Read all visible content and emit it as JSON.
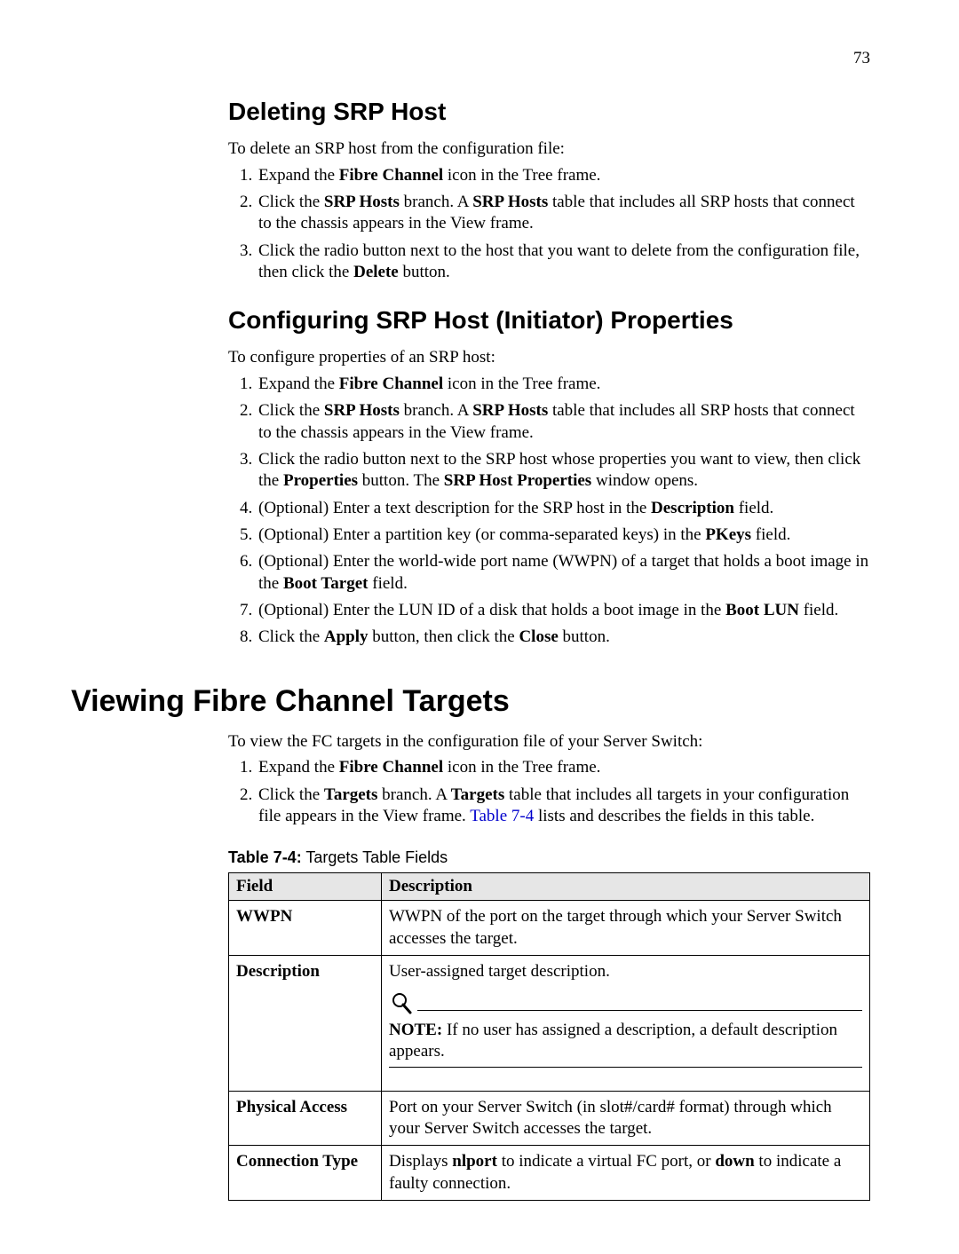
{
  "pageNumber": "73",
  "sec1": {
    "title": "Deleting SRP Host",
    "intro": "To delete an SRP host from the configuration file:",
    "steps_html": [
      "Expand the <b>Fibre Channel</b> icon in the Tree frame.",
      "Click the <b>SRP Hosts</b> branch. A <b>SRP Hosts</b> table that includes all SRP hosts that connect to the chassis appears in the View frame.",
      "Click the radio button next to the host that you want to delete from the configuration file, then click the <b>Delete</b> button."
    ]
  },
  "sec2": {
    "title": "Configuring SRP Host (Initiator) Properties",
    "intro": "To configure properties of an SRP host:",
    "steps_html": [
      "Expand the <b>Fibre Channel</b> icon in the Tree frame.",
      "Click the <b>SRP Hosts</b> branch. A <b>SRP Hosts</b> table that includes all SRP hosts that connect to the chassis appears in the View frame.",
      "Click the radio button next to the SRP host whose properties you want to view, then click the <b>Properties</b> button. The <b>SRP Host Properties</b> window opens.",
      "(Optional) Enter a text description for the SRP host in the <b>Description</b> field.",
      "(Optional) Enter a partition key (or comma-separated keys) in the <b>PKeys</b> field.",
      "(Optional) Enter the world-wide port name (WWPN) of a target that holds a boot image in the <b>Boot Target</b> field.",
      "(Optional) Enter the LUN ID of a disk that holds a boot image in the <b>Boot LUN</b> field.",
      "Click the <b>Apply</b> button, then click the <b>Close</b> button."
    ]
  },
  "sec3": {
    "title": "Viewing Fibre Channel Targets",
    "intro": "To view the FC targets in the configuration file of your Server Switch:",
    "steps_html": [
      "Expand the <b>Fibre Channel</b> icon in the Tree frame.",
      "Click the <b>Targets</b> branch. A <b>Targets</b> table that includes all targets in your configuration file appears in the View frame. <a class=\"xref\" href=\"#\">Table 7-4</a> lists and describes the fields in this table."
    ]
  },
  "table": {
    "caption_bold": "Table 7-4:",
    "caption_rest": " Targets Table Fields",
    "headers": [
      "Field",
      "Description"
    ],
    "rows": [
      {
        "field": "WWPN",
        "desc_html": "WWPN of the port on the target through which your Server Switch accesses the target.",
        "note_html": null
      },
      {
        "field": "Description",
        "desc_html": "User-assigned target description.",
        "note_html": "<b>NOTE:</b>  If no user has assigned a description, a default description appears."
      },
      {
        "field": "Physical Access",
        "desc_html": "Port on your Server Switch (in slot#/card# format) through which your Server Switch accesses the target.",
        "note_html": null
      },
      {
        "field": "Connection Type",
        "desc_html": "Displays <b>nlport</b> to indicate a virtual FC port, or <b>down</b> to indicate a faulty connection.",
        "note_html": null
      }
    ]
  }
}
